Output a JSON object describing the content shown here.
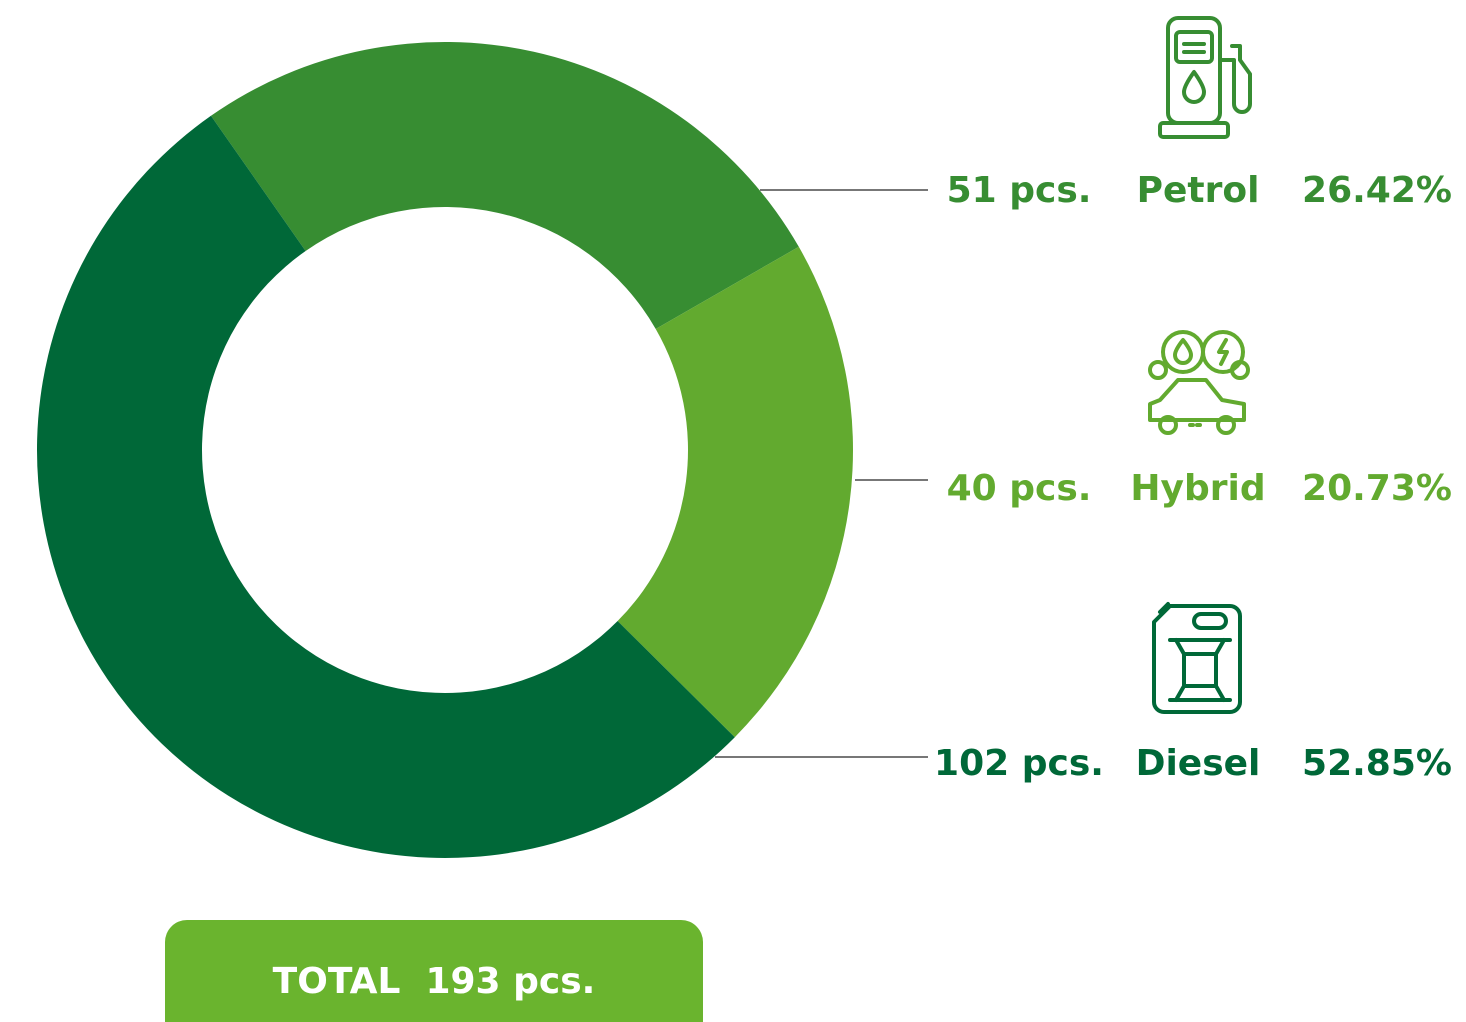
{
  "chart_data": {
    "type": "pie",
    "donut": true,
    "categories": [
      "Petrol",
      "Hybrid",
      "Diesel"
    ],
    "values": [
      51,
      40,
      102
    ],
    "value_labels": [
      "51 pcs.",
      "40 pcs.",
      "102 pcs."
    ],
    "percentages": [
      26.42,
      20.73,
      52.85
    ],
    "percentage_labels": [
      "26.42%",
      "20.73%",
      "52.85%"
    ],
    "colors": [
      "#378d32",
      "#62aa2f",
      "#006838"
    ],
    "total_label": "TOTAL  193 pcs."
  }
}
